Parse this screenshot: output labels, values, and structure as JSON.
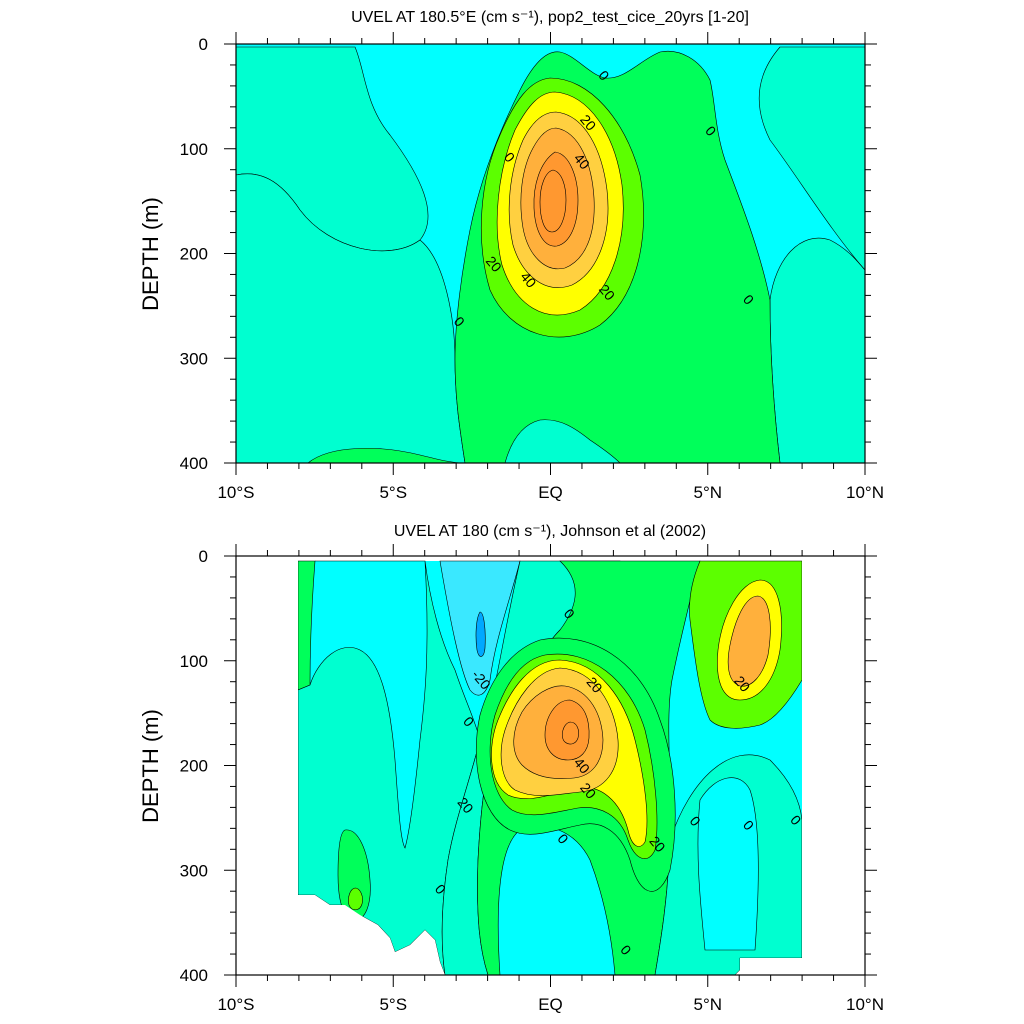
{
  "colors": {
    "band_neg3": "#00a8ff",
    "band_neg2": "#3ae8ff",
    "band_neg1": "#00ffff",
    "band_0": "#00ffd0",
    "band_1": "#00ff5a",
    "band_2": "#5cff00",
    "band_3": "#ffff00",
    "band_4": "#ffd040",
    "band_5": "#ffb03c",
    "band_6": "#ff9830"
  },
  "chart_data": [
    {
      "type": "contour",
      "title": "UVEL AT 180.5°E (cm s⁻¹), pop2_test_cice_20yrs [1-20]",
      "xlabel": "",
      "ylabel": "DEPTH (m)",
      "xlim": [
        -10,
        10
      ],
      "ylim": [
        400,
        0
      ],
      "x_ticks": [
        -10,
        -5,
        0,
        5,
        10
      ],
      "x_tick_labels": [
        "10°S",
        "5°S",
        "EQ",
        "5°N",
        "10°N"
      ],
      "y_ticks": [
        0,
        100,
        200,
        300,
        400
      ],
      "y_tick_labels": [
        "0",
        "100",
        "200",
        "300",
        "400"
      ],
      "contour_interval": 10,
      "max_value": 60,
      "max_location": {
        "x": -0.1,
        "y": 150
      },
      "contour_labels": [
        {
          "text": "0",
          "x": 1.7,
          "y": 30
        },
        {
          "text": "0",
          "x": 5.1,
          "y": 83
        },
        {
          "text": "0",
          "x": -1.3,
          "y": 108
        },
        {
          "text": "0",
          "x": -2.9,
          "y": 265
        },
        {
          "text": "0",
          "x": 6.3,
          "y": 244
        },
        {
          "text": "20",
          "x": 1.2,
          "y": 75
        },
        {
          "text": "40",
          "x": 1.0,
          "y": 112
        },
        {
          "text": "20",
          "x": -1.8,
          "y": 210
        },
        {
          "text": "40",
          "x": -0.7,
          "y": 225
        },
        {
          "text": "20",
          "x": 1.8,
          "y": 237
        }
      ]
    },
    {
      "type": "contour",
      "title": "UVEL AT 180 (cm s⁻¹), Johnson et al (2002)",
      "xlabel": "",
      "ylabel": "DEPTH (m)",
      "xlim": [
        -10,
        10
      ],
      "ylim": [
        400,
        0
      ],
      "x_ticks": [
        -10,
        -5,
        0,
        5,
        10
      ],
      "x_tick_labels": [
        "10°S",
        "5°S",
        "EQ",
        "5°N",
        "10°N"
      ],
      "y_ticks": [
        0,
        100,
        200,
        300,
        400
      ],
      "y_tick_labels": [
        "0",
        "100",
        "200",
        "300",
        "400"
      ],
      "data_extent_x": [
        -8,
        8
      ],
      "contour_interval": 10,
      "max_value": 60,
      "max_location": {
        "x": 0.6,
        "y": 170
      },
      "contour_labels": [
        {
          "text": "0",
          "x": 0.6,
          "y": 55
        },
        {
          "text": "-20",
          "x": -2.2,
          "y": 118
        },
        {
          "text": "0",
          "x": -2.6,
          "y": 158
        },
        {
          "text": "20",
          "x": 1.4,
          "y": 123
        },
        {
          "text": "20",
          "x": -2.7,
          "y": 238
        },
        {
          "text": "40",
          "x": 1.0,
          "y": 200
        },
        {
          "text": "20",
          "x": 1.2,
          "y": 224
        },
        {
          "text": "0",
          "x": 0.4,
          "y": 270
        },
        {
          "text": "20",
          "x": 3.4,
          "y": 275
        },
        {
          "text": "0",
          "x": 4.6,
          "y": 253
        },
        {
          "text": "0",
          "x": 6.3,
          "y": 257
        },
        {
          "text": "0",
          "x": 7.8,
          "y": 252
        },
        {
          "text": "0",
          "x": -3.5,
          "y": 318
        },
        {
          "text": "20",
          "x": 6.1,
          "y": 122
        },
        {
          "text": "0",
          "x": 2.4,
          "y": 376
        }
      ]
    }
  ]
}
